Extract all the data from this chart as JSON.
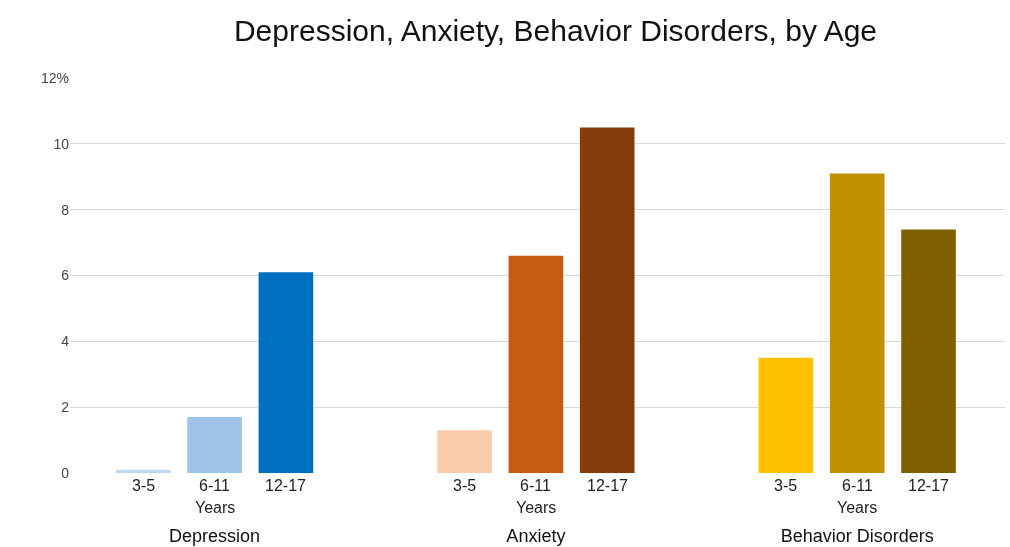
{
  "chart_data": {
    "type": "bar",
    "title": "Depression, Anxiety, Behavior Disorders, by Age",
    "categories": [
      "Depression",
      "Anxiety",
      "Behavior Disorders"
    ],
    "series": [
      {
        "name": "3-5",
        "colors": [
          "#bdd7ee",
          "#f8cbad",
          "#ffc000"
        ],
        "values": [
          0.1,
          1.3,
          3.5
        ]
      },
      {
        "name": "6-11",
        "colors": [
          "#9dc3e6",
          "#c55a11",
          "#bf9000"
        ],
        "values": [
          1.7,
          6.6,
          9.1
        ]
      },
      {
        "name": "12-17",
        "colors": [
          "#0070c0",
          "#843c0c",
          "#7f6000"
        ],
        "values": [
          6.1,
          10.5,
          7.4
        ]
      }
    ],
    "annotations": [
      "Years",
      "Years",
      "Years"
    ],
    "ylim": [
      0,
      12
    ],
    "yticks": [
      0,
      2,
      4,
      6,
      8,
      10,
      {
        "value": 12,
        "label": "12%"
      }
    ],
    "grid": "y"
  }
}
